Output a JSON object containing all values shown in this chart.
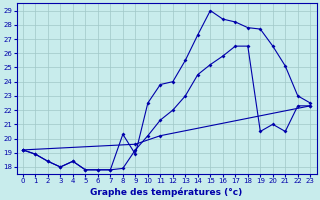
{
  "title": "Graphe des températures (°c)",
  "bg_color": "#c8ecec",
  "grid_color": "#a0c8c8",
  "line_color": "#0000aa",
  "xlim": [
    -0.5,
    23.5
  ],
  "ylim": [
    17.5,
    29.5
  ],
  "yticks": [
    18,
    19,
    20,
    21,
    22,
    23,
    24,
    25,
    26,
    27,
    28,
    29
  ],
  "xticks": [
    0,
    1,
    2,
    3,
    4,
    5,
    6,
    7,
    8,
    9,
    10,
    11,
    12,
    13,
    14,
    15,
    16,
    17,
    18,
    19,
    20,
    21,
    22,
    23
  ],
  "series1_x": [
    0,
    1,
    2,
    3,
    4,
    5,
    6,
    7,
    8,
    9,
    10,
    11,
    12,
    13,
    14,
    15,
    16,
    17,
    18,
    19,
    20,
    21,
    22,
    23
  ],
  "series1_y": [
    19.2,
    18.9,
    18.4,
    18.0,
    18.4,
    17.8,
    17.8,
    17.8,
    20.3,
    18.9,
    22.5,
    23.8,
    24.0,
    25.5,
    27.3,
    29.0,
    28.4,
    28.2,
    27.8,
    27.7,
    26.5,
    25.1,
    23.0,
    22.5
  ],
  "series2_x": [
    0,
    1,
    2,
    3,
    4,
    5,
    6,
    7,
    8,
    9,
    10,
    11,
    12,
    13,
    14,
    15,
    16,
    17,
    18,
    19,
    20,
    21,
    22,
    23
  ],
  "series2_y": [
    19.2,
    18.9,
    18.4,
    18.0,
    18.4,
    17.8,
    17.8,
    17.8,
    17.9,
    19.2,
    20.2,
    21.3,
    22.0,
    23.0,
    24.5,
    25.2,
    25.8,
    26.5,
    26.5,
    20.5,
    21.0,
    20.5,
    22.3,
    22.3
  ],
  "series3_x": [
    0,
    9,
    11,
    23
  ],
  "series3_y": [
    19.2,
    19.6,
    20.2,
    22.3
  ]
}
